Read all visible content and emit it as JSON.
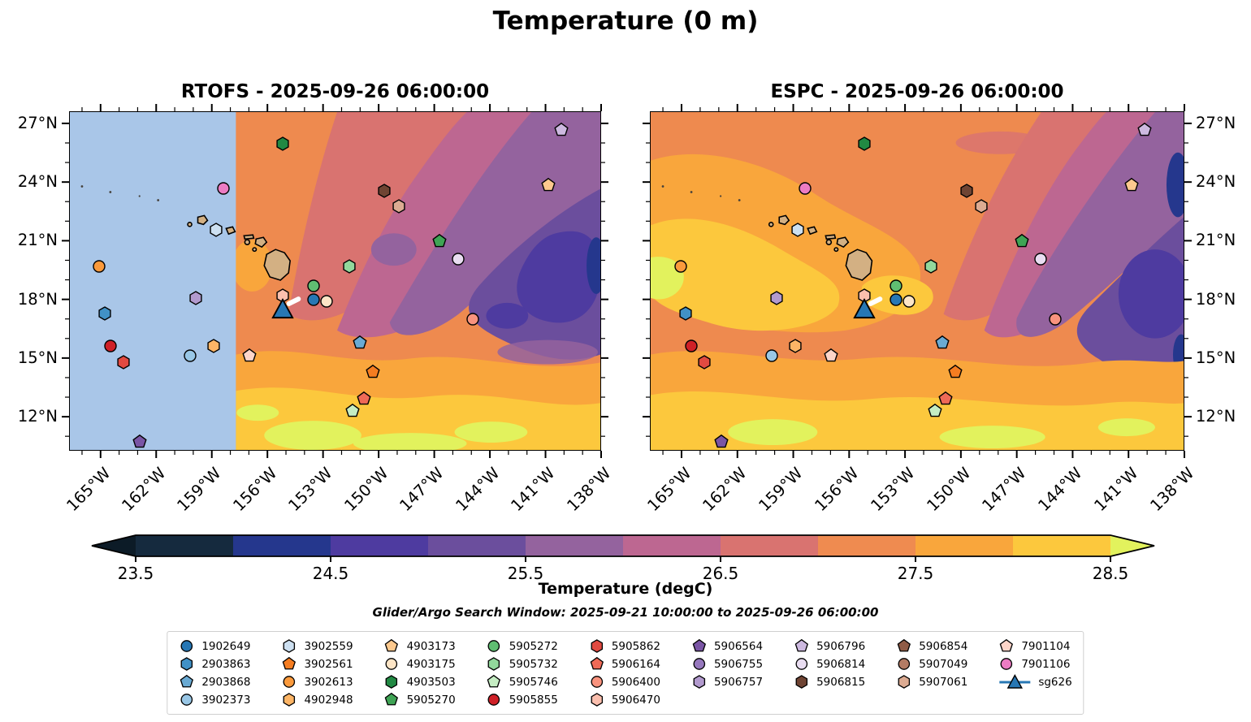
{
  "figure": {
    "title": "Temperature (0 m)"
  },
  "panels": [
    {
      "name": "RTOFS",
      "title": "RTOFS - 2025-09-26 06:00:00"
    },
    {
      "name": "ESPC",
      "title": "ESPC - 2025-09-26 06:00:00"
    }
  ],
  "colorbar": {
    "ticks": [
      "23.5",
      "24.5",
      "25.5",
      "26.5",
      "27.5",
      "28.5"
    ],
    "label": "Temperature (degC)",
    "subtitle": "Glider/Argo Search Window: 2025-09-21 10:00:00 to 2025-09-26 06:00:00",
    "segment_colors": [
      "#152a3e",
      "#25378d",
      "#4e3ba0",
      "#6b4e9d",
      "#94639e",
      "#bd6791",
      "#d97370",
      "#ef8b50",
      "#f9a63c",
      "#fcc83d"
    ],
    "left_arrow_color": "#0c1b27",
    "right_arrow_color": "#e2f25d"
  },
  "map_style": {
    "no_data_color": "#a9c6e8",
    "island_color": "#d3b083",
    "marker_edge_color": "#000000",
    "glider_track_color": "#ffffff"
  },
  "chart_data": {
    "type": "scatter",
    "title": "Temperature (0 m)",
    "panels": [
      "RTOFS - 2025-09-26 06:00:00",
      "ESPC - 2025-09-26 06:00:00"
    ],
    "x": {
      "label": "Longitude",
      "ticks": [
        "165°W",
        "162°W",
        "159°W",
        "156°W",
        "153°W",
        "150°W",
        "147°W",
        "144°W",
        "141°W",
        "138°W"
      ],
      "tick_deg_w": [
        165,
        162,
        159,
        156,
        153,
        150,
        147,
        144,
        141,
        138
      ],
      "range_deg_w": [
        166.7,
        138.0
      ]
    },
    "y": {
      "label": "Latitude",
      "ticks": [
        "27°N",
        "24°N",
        "21°N",
        "18°N",
        "15°N",
        "12°N"
      ],
      "tick_deg_n": [
        27,
        24,
        21,
        18,
        15,
        12
      ],
      "range_deg_n": [
        10.3,
        27.6
      ]
    },
    "colorbar_range_degc": [
      23.5,
      28.5
    ],
    "notes": "RTOFS panel shows a no-data region (light blue) west of ~158.3W. Both panels plot identical Argo float / glider positions. Floats with null lon/lat appear in the legend only.",
    "floats": [
      {
        "id": "1902649",
        "marker": "circle",
        "color": "#2777b4",
        "lon": -153.5,
        "lat": 17.9
      },
      {
        "id": "2903863",
        "marker": "hexagon",
        "color": "#4191c6",
        "lon": -164.8,
        "lat": 17.2
      },
      {
        "id": "2903868",
        "marker": "pentagon",
        "color": "#6aaad3",
        "lon": -151.0,
        "lat": 15.7
      },
      {
        "id": "3902373",
        "marker": "circle",
        "color": "#99c7e6",
        "lon": -160.2,
        "lat": 15.0
      },
      {
        "id": "3902559",
        "marker": "hexagon",
        "color": "#cde0f1",
        "lon": -158.8,
        "lat": 21.5
      },
      {
        "id": "3902561",
        "marker": "pentagon",
        "color": "#f57d21",
        "lon": -150.3,
        "lat": 14.2
      },
      {
        "id": "3902613",
        "marker": "circle",
        "color": "#fb9a3c",
        "lon": -165.1,
        "lat": 19.6
      },
      {
        "id": "4902948",
        "marker": "hexagon",
        "color": "#fdb566",
        "lon": -158.9,
        "lat": 15.5
      },
      {
        "id": "4903173",
        "marker": "pentagon",
        "color": "#fdc98e",
        "lon": -140.8,
        "lat": 23.8
      },
      {
        "id": "4903175",
        "marker": "circle",
        "color": "#fde5c6",
        "lon": -152.8,
        "lat": 17.8
      },
      {
        "id": "4903503",
        "marker": "hexagon",
        "color": "#218943",
        "lon": -155.2,
        "lat": 25.9
      },
      {
        "id": "5905270",
        "marker": "pentagon",
        "color": "#3fa455",
        "lon": -146.7,
        "lat": 20.9
      },
      {
        "id": "5905272",
        "marker": "circle",
        "color": "#60be72",
        "lon": -153.5,
        "lat": 18.6
      },
      {
        "id": "5905732",
        "marker": "hexagon",
        "color": "#92d89c",
        "lon": -151.6,
        "lat": 19.6
      },
      {
        "id": "5905746",
        "marker": "pentagon",
        "color": "#c5edc3",
        "lon": -151.4,
        "lat": 12.2
      },
      {
        "id": "5905855",
        "marker": "circle",
        "color": "#cf2027",
        "lon": -164.5,
        "lat": 15.5
      },
      {
        "id": "5905862",
        "marker": "hexagon",
        "color": "#e14a41",
        "lon": -163.8,
        "lat": 14.7
      },
      {
        "id": "5906164",
        "marker": "pentagon",
        "color": "#ef6a57",
        "lon": -150.8,
        "lat": 12.8
      },
      {
        "id": "5906400",
        "marker": "circle",
        "color": "#f9937e",
        "lon": -144.9,
        "lat": 16.9
      },
      {
        "id": "5906470",
        "marker": "hexagon",
        "color": "#fbbfae",
        "lon": -155.2,
        "lat": 18.1
      },
      {
        "id": "5906564",
        "marker": "pentagon",
        "color": "#7a55a5",
        "lon": -162.9,
        "lat": 10.6
      },
      {
        "id": "5906755",
        "marker": "circle",
        "color": "#9678bd",
        "lon": null,
        "lat": null
      },
      {
        "id": "5906757",
        "marker": "hexagon",
        "color": "#b29ace",
        "lon": -159.9,
        "lat": 18.0
      },
      {
        "id": "5906796",
        "marker": "pentagon",
        "color": "#cdb9e0",
        "lon": -140.1,
        "lat": 26.6
      },
      {
        "id": "5906814",
        "marker": "circle",
        "color": "#e9ddf1",
        "lon": -145.7,
        "lat": 20.0
      },
      {
        "id": "5906815",
        "marker": "hexagon",
        "color": "#6f4433",
        "lon": -149.7,
        "lat": 23.5
      },
      {
        "id": "5906854",
        "marker": "pentagon",
        "color": "#905c47",
        "lon": null,
        "lat": null
      },
      {
        "id": "5907049",
        "marker": "circle",
        "color": "#b37b64",
        "lon": null,
        "lat": null
      },
      {
        "id": "5907061",
        "marker": "hexagon",
        "color": "#dcab92",
        "lon": -148.9,
        "lat": 22.7
      },
      {
        "id": "7901104",
        "marker": "pentagon",
        "color": "#fdd5c9",
        "lon": -157.0,
        "lat": 15.0
      },
      {
        "id": "7901106",
        "marker": "circle",
        "color": "#ec7cc3",
        "lon": -158.4,
        "lat": 23.6
      },
      {
        "id": "sg626",
        "marker": "triangle",
        "color": "#2777b4",
        "lon": -155.2,
        "lat": 17.4
      }
    ],
    "glider_track": {
      "id": "sg626",
      "from": [
        -155.0,
        17.75
      ],
      "to": [
        -154.25,
        18.1
      ]
    }
  }
}
